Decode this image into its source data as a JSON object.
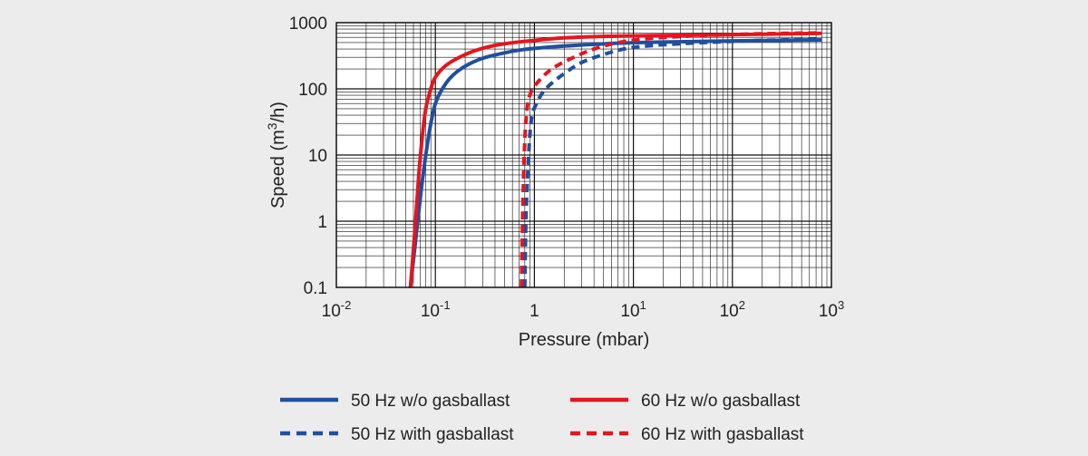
{
  "chart_data": {
    "type": "line",
    "xscale": "log",
    "yscale": "log",
    "xlabel": "Pressure (mbar)",
    "ylabel": {
      "pre": "Speed (m",
      "sup": "3",
      "post": "/h)"
    },
    "xlim": [
      0.01,
      1000
    ],
    "ylim": [
      0.1,
      1000
    ],
    "x_ticks": [
      {
        "base": "10",
        "exp": "-2"
      },
      {
        "base": "10",
        "exp": "-1"
      },
      {
        "base": "1",
        "exp": ""
      },
      {
        "base": "10",
        "exp": "1"
      },
      {
        "base": "10",
        "exp": "2"
      },
      {
        "base": "10",
        "exp": "3"
      }
    ],
    "y_ticks": [
      "0.1",
      "1",
      "10",
      "100",
      "1000"
    ],
    "grid": true,
    "legend_position": "bottom",
    "colors": {
      "blue": "#1f4fa0",
      "red": "#e3161f",
      "grid": "#111111"
    },
    "series": [
      {
        "name": "50 Hz w/o gasballast",
        "color": "#1f4fa0",
        "dash": "solid",
        "points": [
          [
            0.056,
            0.1
          ],
          [
            0.063,
            0.5
          ],
          [
            0.072,
            3
          ],
          [
            0.08,
            10
          ],
          [
            0.09,
            30
          ],
          [
            0.1,
            60
          ],
          [
            0.12,
            105
          ],
          [
            0.15,
            160
          ],
          [
            0.2,
            220
          ],
          [
            0.3,
            290
          ],
          [
            0.5,
            350
          ],
          [
            0.8,
            395
          ],
          [
            1.5,
            430
          ],
          [
            3,
            460
          ],
          [
            7,
            490
          ],
          [
            20,
            510
          ],
          [
            100,
            530
          ],
          [
            800,
            550
          ]
        ]
      },
      {
        "name": "60 Hz w/o gasballast",
        "color": "#e3161f",
        "dash": "solid",
        "points": [
          [
            0.056,
            0.1
          ],
          [
            0.062,
            0.7
          ],
          [
            0.068,
            5
          ],
          [
            0.074,
            20
          ],
          [
            0.08,
            50
          ],
          [
            0.09,
            100
          ],
          [
            0.1,
            150
          ],
          [
            0.13,
            230
          ],
          [
            0.2,
            330
          ],
          [
            0.3,
            410
          ],
          [
            0.5,
            480
          ],
          [
            1,
            540
          ],
          [
            2,
            590
          ],
          [
            5,
            620
          ],
          [
            20,
            640
          ],
          [
            100,
            660
          ],
          [
            800,
            690
          ]
        ]
      },
      {
        "name": "50 Hz with gasballast",
        "color": "#1f4fa0",
        "dash": "dashed",
        "points": [
          [
            0.8,
            0.1
          ],
          [
            0.82,
            1
          ],
          [
            0.86,
            6
          ],
          [
            0.9,
            20
          ],
          [
            0.95,
            40
          ],
          [
            1.05,
            60
          ],
          [
            1.3,
            100
          ],
          [
            2,
            170
          ],
          [
            3,
            250
          ],
          [
            5,
            330
          ],
          [
            8,
            400
          ],
          [
            15,
            450
          ],
          [
            50,
            500
          ],
          [
            200,
            540
          ],
          [
            800,
            560
          ]
        ]
      },
      {
        "name": "60 Hz with gasballast",
        "color": "#e3161f",
        "dash": "dashed",
        "points": [
          [
            0.74,
            0.1
          ],
          [
            0.76,
            1
          ],
          [
            0.79,
            10
          ],
          [
            0.83,
            40
          ],
          [
            0.9,
            80
          ],
          [
            1.05,
            120
          ],
          [
            1.5,
            200
          ],
          [
            2.5,
            300
          ],
          [
            4,
            400
          ],
          [
            7,
            500
          ],
          [
            15,
            580
          ],
          [
            50,
            640
          ],
          [
            200,
            680
          ],
          [
            800,
            700
          ]
        ]
      }
    ]
  }
}
